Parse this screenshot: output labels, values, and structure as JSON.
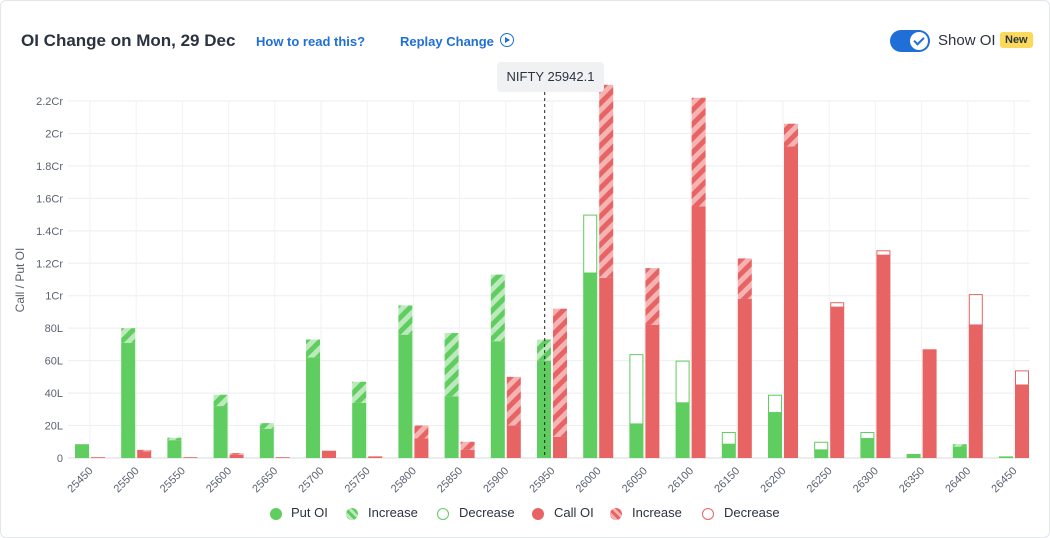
{
  "header": {
    "title": "OI Change on Mon, 29 Dec",
    "how_to_read": "How to read this?",
    "replay_label": "Replay Change",
    "show_oi_label": "Show OI",
    "new_badge": "New",
    "show_oi_enabled": true
  },
  "spot_label": "NIFTY 25942.1",
  "legend": {
    "put_oi": "Put OI",
    "put_increase": "Increase",
    "put_decrease": "Decrease",
    "call_oi": "Call OI",
    "call_increase": "Increase",
    "call_decrease": "Decrease"
  },
  "colors": {
    "put": "#5fcd5f",
    "call": "#e86464",
    "accent": "#1f6fd6",
    "badge": "#fbd95a"
  },
  "chart_data": {
    "type": "bar",
    "ylabel": "Call / Put OI",
    "ylim": [
      0,
      2.2
    ],
    "y_unit": "Cr",
    "y_ticks": [
      {
        "value": 0,
        "label": "0"
      },
      {
        "value": 0.2,
        "label": "20L"
      },
      {
        "value": 0.4,
        "label": "40L"
      },
      {
        "value": 0.6,
        "label": "60L"
      },
      {
        "value": 0.8,
        "label": "80L"
      },
      {
        "value": 1.0,
        "label": "1Cr"
      },
      {
        "value": 1.2,
        "label": "1.2Cr"
      },
      {
        "value": 1.4,
        "label": "1.4Cr"
      },
      {
        "value": 1.6,
        "label": "1.6Cr"
      },
      {
        "value": 1.8,
        "label": "1.8Cr"
      },
      {
        "value": 2.0,
        "label": "2Cr"
      },
      {
        "value": 2.2,
        "label": "2.2Cr"
      }
    ],
    "spot": 25942.1,
    "strikes": [
      25450,
      25500,
      25550,
      25600,
      25650,
      25700,
      25750,
      25800,
      25850,
      25900,
      25950,
      26000,
      26050,
      26100,
      26150,
      26200,
      26250,
      26300,
      26350,
      26400,
      26450
    ],
    "put": {
      "base": [
        0.085,
        0.71,
        0.11,
        0.32,
        0.18,
        0.62,
        0.34,
        0.76,
        0.38,
        0.72,
        0.6,
        1.14,
        0.21,
        0.34,
        0.085,
        0.28,
        0.05,
        0.12,
        0.025,
        0.07,
        0.01
      ],
      "increase": [
        0,
        0.09,
        0.015,
        0.07,
        0.035,
        0.11,
        0.13,
        0.18,
        0.39,
        0.41,
        0.13,
        0,
        0,
        0,
        0,
        0,
        0,
        0,
        0,
        0.015,
        0
      ],
      "decrease": [
        0,
        0,
        0,
        0,
        0,
        0,
        0,
        0,
        0,
        0,
        0,
        0.36,
        0.43,
        0.26,
        0.075,
        0.11,
        0.05,
        0.04,
        0,
        0,
        0
      ]
    },
    "call": {
      "base": [
        0.005,
        0.04,
        0.005,
        0.02,
        0.005,
        0.045,
        0.01,
        0.12,
        0.05,
        0.2,
        0.13,
        1.11,
        0.82,
        1.55,
        0.98,
        1.92,
        0.93,
        1.25,
        0.67,
        0.82,
        0.45
      ],
      "increase": [
        0,
        0.01,
        0,
        0.01,
        0,
        0,
        0,
        0.08,
        0.05,
        0.3,
        0.79,
        1.19,
        0.35,
        0.67,
        0.25,
        0.14,
        0,
        0,
        0,
        0,
        0
      ],
      "decrease": [
        0,
        0,
        0,
        0,
        0,
        0,
        0,
        0,
        0,
        0,
        0,
        0,
        0,
        0,
        0,
        0,
        0.03,
        0.03,
        0,
        0.19,
        0.09
      ]
    }
  }
}
